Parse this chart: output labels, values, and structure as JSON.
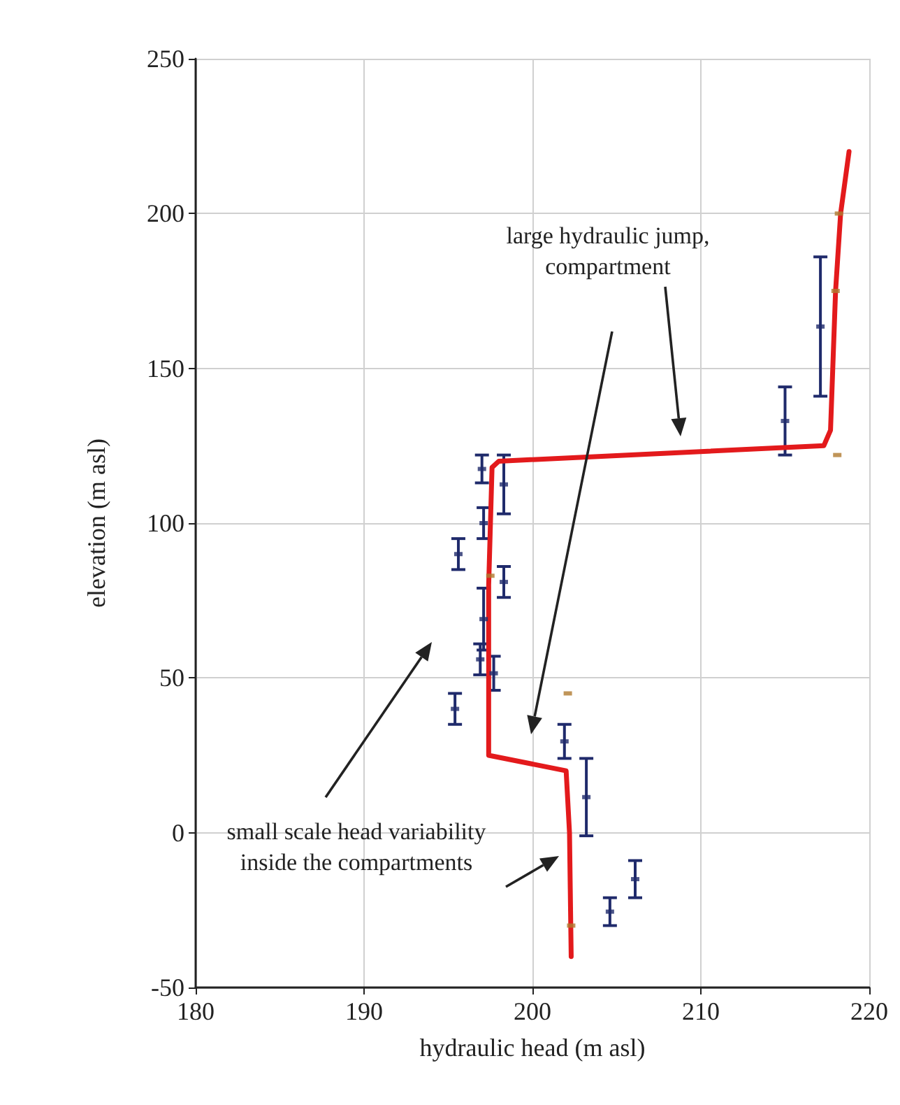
{
  "chart_data": {
    "type": "line",
    "xlabel": "hydraulic head (m asl)",
    "ylabel": "elevation (m asl)",
    "xlim": [
      180,
      220
    ],
    "xticks": [
      180,
      190,
      200,
      210,
      220
    ],
    "ylim": [
      -50,
      250
    ],
    "yticks": [
      -50,
      0,
      50,
      100,
      150,
      200,
      250
    ],
    "grid": true,
    "annotations": [
      "large hydraulic jump, compartment",
      "small scale head variability inside the compartments"
    ],
    "series": [
      {
        "type": "scatter",
        "color": "#1f2a6b",
        "marker": "square",
        "x": [
          217.1,
          215.0,
          197.0,
          198.3,
          197.1,
          195.6,
          198.3,
          197.1,
          196.9,
          197.7,
          195.4,
          201.9,
          203.2,
          204.6,
          206.1
        ],
        "values": [
          163.5,
          133,
          117.5,
          112.5,
          100,
          90,
          81,
          69,
          56,
          51.5,
          40,
          29.5,
          11.5,
          -25.5,
          -15
        ],
        "errors": [
          [
            141,
            186
          ],
          [
            122,
            144
          ],
          [
            113,
            122
          ],
          [
            103,
            122
          ],
          [
            95,
            105
          ],
          [
            85,
            95
          ],
          [
            76,
            86
          ],
          [
            59,
            79
          ],
          [
            51,
            61
          ],
          [
            46,
            57
          ],
          [
            35,
            45
          ],
          [
            24,
            35
          ],
          [
            -1,
            24
          ],
          [
            -30,
            -21
          ],
          [
            -21,
            -9
          ]
        ]
      },
      {
        "type": "scatter",
        "color": "#b07a30",
        "marker": "square",
        "x": [
          218.1,
          218.0,
          218.2,
          202.1,
          197.5,
          202.3
        ],
        "values": [
          122,
          175,
          200,
          45,
          83,
          -30
        ]
      },
      {
        "color": "#e31a1c",
        "line_style": "solid",
        "x": [
          218.8,
          218.3,
          218.0,
          217.7,
          217.3,
          198.0,
          197.6,
          197.4,
          197.4,
          202.0,
          202.2,
          202.3
        ],
        "values": [
          220,
          200,
          175,
          130,
          125,
          120,
          118,
          80,
          25,
          20,
          0,
          -40
        ]
      }
    ]
  }
}
